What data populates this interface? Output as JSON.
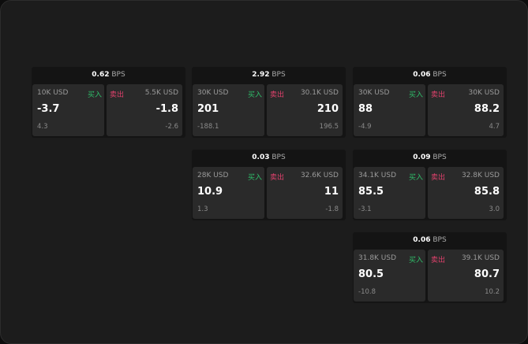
{
  "labels": {
    "unit": "BPS",
    "buy": "买入",
    "sell": "卖出"
  },
  "colors": {
    "buy": "#2fbf6a",
    "sell": "#e0416c"
  },
  "cards": [
    {
      "spread": "0.62",
      "buy": {
        "qty": "10K USD",
        "price": "-3.7",
        "change": "4.3"
      },
      "sell": {
        "qty": "5.5K USD",
        "price": "-1.8",
        "change": "-2.6"
      }
    },
    {
      "spread": "2.92",
      "buy": {
        "qty": "30K USD",
        "price": "201",
        "change": "-188.1"
      },
      "sell": {
        "qty": "30.1K USD",
        "price": "210",
        "change": "196.5"
      }
    },
    {
      "spread": "0.06",
      "buy": {
        "qty": "30K USD",
        "price": "88",
        "change": "-4.9"
      },
      "sell": {
        "qty": "30K USD",
        "price": "88.2",
        "change": "4.7"
      }
    },
    {
      "spread": "0.03",
      "buy": {
        "qty": "28K USD",
        "price": "10.9",
        "change": "1.3"
      },
      "sell": {
        "qty": "32.6K USD",
        "price": "11",
        "change": "-1.8"
      }
    },
    {
      "spread": "0.09",
      "buy": {
        "qty": "34.1K USD",
        "price": "85.5",
        "change": "-3.1"
      },
      "sell": {
        "qty": "32.8K USD",
        "price": "85.8",
        "change": "3.0"
      }
    },
    {
      "spread": "0.06",
      "buy": {
        "qty": "31.8K USD",
        "price": "80.5",
        "change": "-10.8"
      },
      "sell": {
        "qty": "39.1K USD",
        "price": "80.7",
        "change": "10.2"
      }
    }
  ]
}
